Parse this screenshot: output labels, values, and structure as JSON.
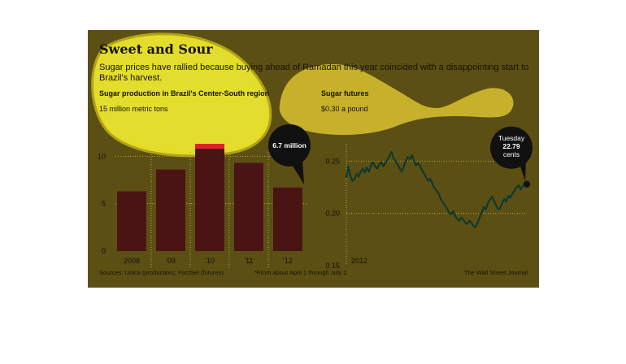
{
  "graphic": {
    "title": "Sweet and Sour",
    "subtitle": "Sugar prices have rallied because buying ahead of Ramadan this year coincided with a disappointing start to Brazil's harvest.",
    "sources": "Sources: Unica (production); FactSet (futures)",
    "footnote": "*From about April 1 through July 1",
    "credit": "The Wall Street Journal"
  },
  "colors": {
    "background": "#5c4f14",
    "bar": "#4a1414",
    "bar_top": "#e0202a",
    "line": "#0e3a2e",
    "callout": "#111111",
    "highlight": "#f2ec30",
    "gridline": "#b5a34a"
  },
  "chart_data": [
    {
      "type": "bar",
      "title": "Sugar production in Brazil's Center-South region",
      "unit_label": "15 million metric tons",
      "categories": [
        "2008",
        "'09",
        "'10",
        "'11",
        "'12"
      ],
      "values": [
        6.3,
        8.6,
        11.3,
        9.3,
        6.7
      ],
      "ylim": [
        0,
        15
      ],
      "yticks": [
        "0",
        "5",
        "10"
      ],
      "callout": {
        "category": "'12",
        "text": "6.7 million"
      },
      "grid": true
    },
    {
      "type": "line",
      "title": "Sugar futures",
      "unit_label": "$0.30 a pound",
      "ylim": [
        0.15,
        0.3
      ],
      "yticks": [
        "0.15",
        "0.20",
        "0.25"
      ],
      "x_label": "2012",
      "series": [
        {
          "values": [
            0.234,
            0.245,
            0.236,
            0.231,
            0.233,
            0.238,
            0.235,
            0.24,
            0.243,
            0.239,
            0.244,
            0.24,
            0.246,
            0.249,
            0.245,
            0.243,
            0.247,
            0.249,
            0.245,
            0.248,
            0.251,
            0.255,
            0.259,
            0.253,
            0.25,
            0.247,
            0.243,
            0.24,
            0.245,
            0.25,
            0.254,
            0.252,
            0.256,
            0.25,
            0.246,
            0.248,
            0.245,
            0.241,
            0.238,
            0.234,
            0.231,
            0.233,
            0.228,
            0.224,
            0.222,
            0.219,
            0.214,
            0.211,
            0.208,
            0.205,
            0.201,
            0.199,
            0.202,
            0.198,
            0.195,
            0.193,
            0.196,
            0.194,
            0.191,
            0.19,
            0.193,
            0.191,
            0.188,
            0.187,
            0.191,
            0.196,
            0.201,
            0.206,
            0.204,
            0.21,
            0.213,
            0.216,
            0.212,
            0.208,
            0.204,
            0.205,
            0.21,
            0.214,
            0.211,
            0.217,
            0.215,
            0.219,
            0.222,
            0.225,
            0.227,
            0.223,
            0.226,
            0.228,
            0.2279
          ]
        }
      ],
      "callout": {
        "lines": [
          "Tuesday",
          "22.79",
          "cents"
        ]
      },
      "grid": true
    }
  ]
}
